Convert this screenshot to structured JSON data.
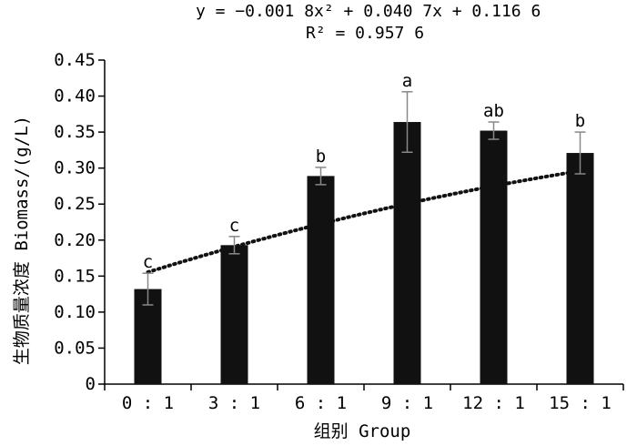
{
  "chart_data": {
    "type": "bar",
    "title": "",
    "equation": "y = −0.001 8x² + 0.040 7x + 0.116 6",
    "r_squared": "R² = 0.957 6",
    "xlabel": "组别 Group",
    "ylabel": "生物质量浓度 Biomass/(g/L)",
    "ylim": [
      0,
      0.45
    ],
    "y_ticks": [
      "0",
      "0.05",
      "0.10",
      "0.15",
      "0.20",
      "0.25",
      "0.30",
      "0.35",
      "0.40",
      "0.45"
    ],
    "categories": [
      "0 : 1",
      "3 : 1",
      "6 : 1",
      "9 : 1",
      "12 : 1",
      "15 : 1"
    ],
    "values": [
      0.132,
      0.193,
      0.289,
      0.364,
      0.352,
      0.321
    ],
    "errors": [
      0.022,
      0.012,
      0.012,
      0.042,
      0.012,
      0.029
    ],
    "significance_letters": [
      "c",
      "c",
      "b",
      "a",
      "ab",
      "b"
    ],
    "trendline": {
      "type": "polynomial",
      "order": 2,
      "coefficients": [
        -0.0018,
        0.0407,
        0.1166
      ],
      "style": "dotted"
    },
    "colors": {
      "bar": "#111111",
      "error_bar": "#888888",
      "trendline": "#111111",
      "axis": "#000000"
    }
  }
}
